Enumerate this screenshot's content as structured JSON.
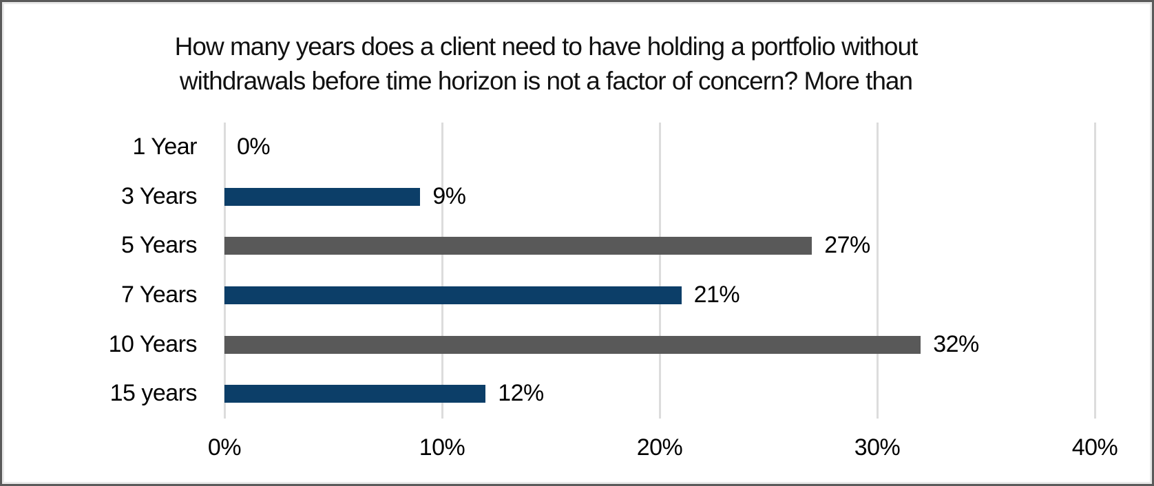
{
  "chart_data": {
    "type": "bar",
    "orientation": "horizontal",
    "title": "How many years does a client need to have holding a portfolio without withdrawals before time horizon is not a factor of concern? More than",
    "title_lines": {
      "line1": "How many years does a client need to have holding a portfolio without",
      "line2": "withdrawals before time horizon is not a factor of concern? More than"
    },
    "categories": [
      "1 Year",
      "3 Years",
      "5 Years",
      "7 Years",
      "10 Years",
      "15 years"
    ],
    "values": [
      0,
      9,
      27,
      21,
      32,
      12
    ],
    "value_labels": [
      "0%",
      "9%",
      "27%",
      "21%",
      "32%",
      "12%"
    ],
    "bar_colors": [
      "#595959",
      "#0c3e68",
      "#595959",
      "#0c3e68",
      "#595959",
      "#0c3e68"
    ],
    "x_ticks": [
      "0%",
      "10%",
      "20%",
      "30%",
      "40%"
    ],
    "x_tick_values": [
      0,
      10,
      20,
      30,
      40
    ],
    "xlim": [
      0,
      40
    ],
    "grid": true,
    "legend": "none",
    "colors": {
      "bar_blue": "#0c3e68",
      "bar_gray": "#595959",
      "gridline": "#dcdcdc",
      "border": "#5a5a5a",
      "background": "#ffffff",
      "text": "#000000"
    }
  }
}
